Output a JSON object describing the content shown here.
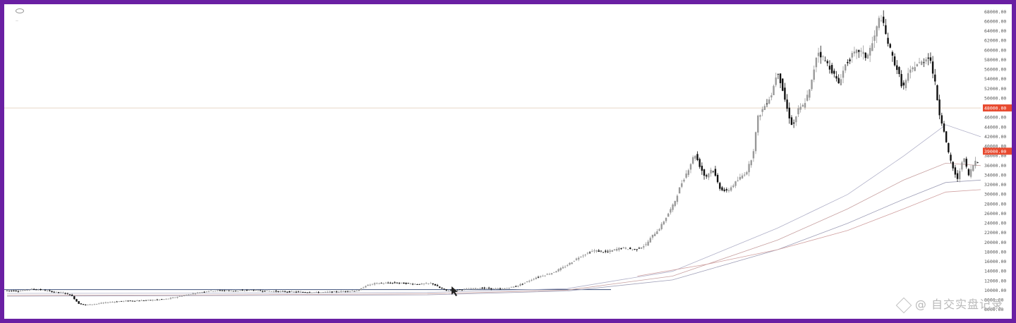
{
  "toolbar": {
    "symbol": "",
    "visibility_icon": "eye-icon"
  },
  "watermark": {
    "text": "@ 自交实盘记录",
    "logo_icon": "binance-logo-icon"
  },
  "colors": {
    "frame": "#6a1fa3",
    "price_tag_upper": "#e84a2f",
    "price_tag_lower": "#e84a2f",
    "support_line": "#3b4f7a",
    "candle_up": "#999999",
    "candle_down": "#111111",
    "ma_colors": [
      "#b0b0c8",
      "#c7a0a0",
      "#a0a0b8",
      "#d0a0a0"
    ]
  },
  "chart_data": {
    "type": "candlestick",
    "title": "",
    "xlabel": "",
    "ylabel": "",
    "ylim": [
      5000,
      69000
    ],
    "y_ticks": [
      68000,
      66000,
      64000,
      62000,
      60000,
      58000,
      56000,
      54000,
      52000,
      50000,
      48000,
      46000,
      44000,
      42000,
      40000,
      38000,
      36000,
      34000,
      32000,
      30000,
      28000,
      26000,
      24000,
      22000,
      20000,
      18000,
      16000,
      14000,
      12000,
      10000,
      8000,
      6000
    ],
    "price_tags": [
      {
        "label": "48000.00",
        "value": 48000
      },
      {
        "label": "39000.00",
        "value": 39000
      }
    ],
    "horizontal_lines": [
      {
        "name": "resistance",
        "value": 48000
      },
      {
        "name": "support",
        "value": 10200
      }
    ],
    "price_path": [
      [
        0,
        10000
      ],
      [
        20,
        9900
      ],
      [
        40,
        10300
      ],
      [
        55,
        10100
      ],
      [
        70,
        9700
      ],
      [
        85,
        9500
      ],
      [
        95,
        9000
      ],
      [
        105,
        7300
      ],
      [
        115,
        7000
      ],
      [
        130,
        7200
      ],
      [
        150,
        7600
      ],
      [
        170,
        7800
      ],
      [
        190,
        7900
      ],
      [
        210,
        8000
      ],
      [
        230,
        8200
      ],
      [
        250,
        8800
      ],
      [
        270,
        9400
      ],
      [
        290,
        9900
      ],
      [
        310,
        10000
      ],
      [
        330,
        9900
      ],
      [
        350,
        10100
      ],
      [
        370,
        9900
      ],
      [
        390,
        9800
      ],
      [
        420,
        9700
      ],
      [
        450,
        9600
      ],
      [
        480,
        9800
      ],
      [
        505,
        10000
      ],
      [
        515,
        11000
      ],
      [
        530,
        11500
      ],
      [
        560,
        11600
      ],
      [
        590,
        11300
      ],
      [
        610,
        11500
      ],
      [
        620,
        10600
      ],
      [
        630,
        10000
      ],
      [
        650,
        10200
      ],
      [
        680,
        10500
      ],
      [
        710,
        10300
      ],
      [
        730,
        10900
      ],
      [
        745,
        11800
      ],
      [
        760,
        12800
      ],
      [
        780,
        13600
      ],
      [
        800,
        15000
      ],
      [
        820,
        17000
      ],
      [
        840,
        18300
      ],
      [
        860,
        18000
      ],
      [
        880,
        18900
      ],
      [
        900,
        18500
      ],
      [
        915,
        19500
      ],
      [
        925,
        21500
      ],
      [
        935,
        23000
      ],
      [
        945,
        25500
      ],
      [
        955,
        28000
      ],
      [
        965,
        32000
      ],
      [
        975,
        35000
      ],
      [
        985,
        38500
      ],
      [
        992,
        36000
      ],
      [
        1000,
        33500
      ],
      [
        1010,
        35500
      ],
      [
        1020,
        31500
      ],
      [
        1030,
        30500
      ],
      [
        1040,
        32000
      ],
      [
        1050,
        33500
      ],
      [
        1060,
        35000
      ],
      [
        1068,
        38500
      ],
      [
        1075,
        46000
      ],
      [
        1085,
        48500
      ],
      [
        1095,
        51000
      ],
      [
        1103,
        56000
      ],
      [
        1110,
        52000
      ],
      [
        1118,
        47000
      ],
      [
        1125,
        44000
      ],
      [
        1132,
        47500
      ],
      [
        1140,
        48500
      ],
      [
        1150,
        52000
      ],
      [
        1160,
        60000
      ],
      [
        1170,
        58000
      ],
      [
        1180,
        56000
      ],
      [
        1190,
        53000
      ],
      [
        1200,
        57000
      ],
      [
        1210,
        59000
      ],
      [
        1220,
        60000
      ],
      [
        1230,
        58500
      ],
      [
        1240,
        62000
      ],
      [
        1250,
        67500
      ],
      [
        1258,
        63000
      ],
      [
        1266,
        59000
      ],
      [
        1274,
        56000
      ],
      [
        1282,
        52000
      ],
      [
        1290,
        55000
      ],
      [
        1300,
        57000
      ],
      [
        1310,
        57500
      ],
      [
        1320,
        59000
      ],
      [
        1328,
        53000
      ],
      [
        1334,
        47000
      ],
      [
        1340,
        44000
      ],
      [
        1346,
        39000
      ],
      [
        1352,
        36000
      ],
      [
        1360,
        33000
      ],
      [
        1368,
        38000
      ],
      [
        1376,
        34000
      ],
      [
        1385,
        37000
      ]
    ],
    "moving_averages": [
      {
        "points": [
          [
            0,
            9400
          ],
          [
            300,
            9450
          ],
          [
            600,
            9600
          ],
          [
            800,
            10400
          ],
          [
            950,
            14000
          ],
          [
            1100,
            23000
          ],
          [
            1200,
            30000
          ],
          [
            1280,
            38000
          ],
          [
            1340,
            44500
          ],
          [
            1390,
            42000
          ]
        ]
      },
      {
        "points": [
          [
            0,
            9000
          ],
          [
            300,
            9100
          ],
          [
            600,
            9300
          ],
          [
            800,
            10100
          ],
          [
            950,
            13000
          ],
          [
            1100,
            20500
          ],
          [
            1200,
            27000
          ],
          [
            1280,
            33000
          ],
          [
            1340,
            36500
          ],
          [
            1390,
            36000
          ]
        ]
      },
      {
        "points": [
          [
            0,
            8800
          ],
          [
            300,
            8950
          ],
          [
            600,
            9100
          ],
          [
            800,
            9900
          ],
          [
            950,
            12200
          ],
          [
            1100,
            18500
          ],
          [
            1200,
            24000
          ],
          [
            1280,
            29000
          ],
          [
            1340,
            32500
          ],
          [
            1390,
            33000
          ]
        ]
      },
      {
        "points": [
          [
            900,
            13000
          ],
          [
            1000,
            15500
          ],
          [
            1100,
            18500
          ],
          [
            1200,
            22500
          ],
          [
            1280,
            27000
          ],
          [
            1340,
            30500
          ],
          [
            1390,
            31000
          ]
        ]
      }
    ]
  }
}
